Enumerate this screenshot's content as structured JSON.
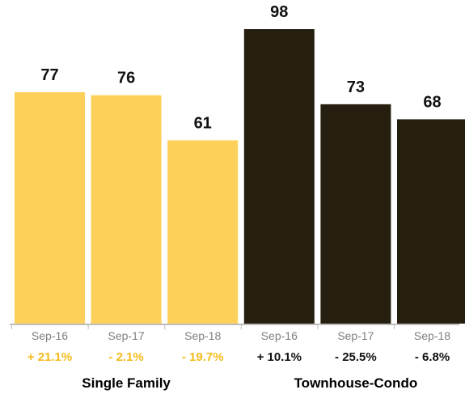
{
  "chart_data": {
    "type": "bar",
    "ylim": [
      0,
      105
    ],
    "groups": [
      {
        "name": "Single Family",
        "color": "#FDD05A",
        "change_color": "#F5BC1C",
        "bars": [
          {
            "label": "Sep-16",
            "value": 77,
            "change": "+ 21.1%"
          },
          {
            "label": "Sep-17",
            "value": 76,
            "change": "- 2.1%"
          },
          {
            "label": "Sep-18",
            "value": 61,
            "change": "- 19.7%"
          }
        ]
      },
      {
        "name": "Townhouse-Condo",
        "color": "#261E0F",
        "change_color": "#111111",
        "bars": [
          {
            "label": "Sep-16",
            "value": 98,
            "change": "+ 10.1%"
          },
          {
            "label": "Sep-17",
            "value": 73,
            "change": "- 25.5%"
          },
          {
            "label": "Sep-18",
            "value": 68,
            "change": "- 6.8%"
          }
        ]
      }
    ]
  }
}
